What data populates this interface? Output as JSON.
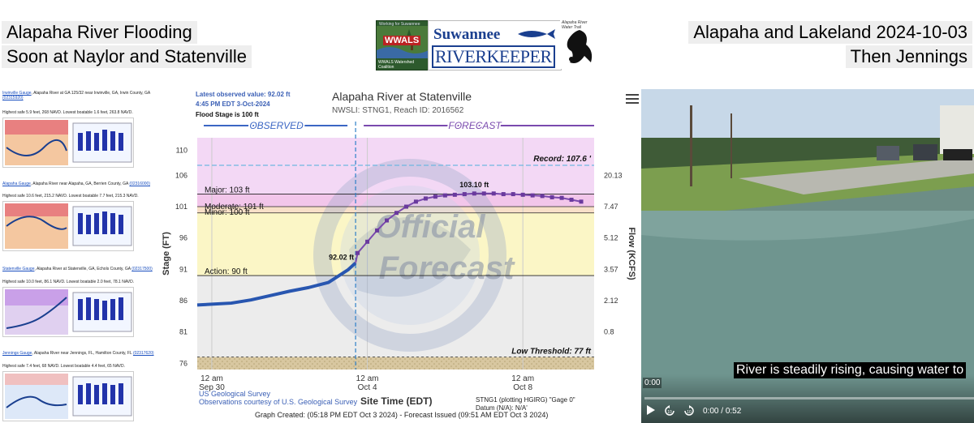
{
  "header": {
    "left_line1": "Alapaha River Flooding",
    "left_line2": "Soon at Naylor and Statenville",
    "right_line1": "Alapaha and Lakeland 2024-10-03",
    "right_line2": "Then Jennings"
  },
  "logo": {
    "wwals_top": "Working for Suwannee Conservation",
    "wwals_name": "WWALS",
    "wwals_bottom": "WWALS Watershed Coalition",
    "riverkeeper_name": "Suwannee",
    "riverkeeper_word": "RIVERKEEPER",
    "alapaha_text": "Alapaha River Water Trail"
  },
  "gauges": [
    {
      "link": "Irwinville Gauge",
      "title": ", Alapaha River at GA 125/32 near Irwinville, GA, Irwin County, GA",
      "code": "(02315920)",
      "stats": "Highest safe 5.9 feet, 268 NAVD. Lowest boatable 1.6 feet, 263.8 NAVD."
    },
    {
      "link": "Alapaha Gauge",
      "title": ", Alapaha River near Alapaha, GA, Berrien County, GA",
      "code": "(02316000)",
      "stats": "Highest safe 10.6 feet, 215.2 NAVD. Lowest boatable 7.7 feet, 215.3 NAVD."
    },
    {
      "link": "Statenville Gauge",
      "title": ", Alapaha River at Statenville, GA, Echols County, GA",
      "code": "(02317500)",
      "stats": "Highest safe 10.0 feet, 86.1 NAVD. Lowest boatable 2.0 feet, 78.1 NAVD."
    },
    {
      "link": "Jennings Gauge",
      "title": ", Alapaha River near Jennings, FL, Hamilton County, FL",
      "code": "(02317620)",
      "stats": "Highest safe 7.4 feet, 68 NAVD. Lowest boatable 4.4 feet, 65 NAVD."
    }
  ],
  "hydrograph": {
    "latest_line1": "Latest observed value: 92.02 ft",
    "latest_line2": "4:45 PM EDT 3-Oct-2024",
    "flood_stage": "Flood Stage is 100 ft",
    "title": "Alapaha River at Statenville",
    "subtitle": "NWSLI: STNG1, Reach ID: 2016562",
    "observed_label": "OBSERVED",
    "forecast_label": "FORECAST",
    "record_label": "Record: 107.6 '",
    "major_label": "Major: 103 ft",
    "moderate_label": "Moderate: 101 ft",
    "minor_label": "Minor: 100 ft",
    "action_label": "Action: 90 ft",
    "low_threshold_label": "Low Threshold: 77 ft",
    "peak_label": "103.10 ft",
    "current_label": "92.02 ft",
    "watermark_line1": "Official",
    "watermark_line2": "Forecast",
    "seal_text": "NATIONAL OCEANIC AND ATMOSPHERIC ADMINISTRATION U.S. DEPARTMENT OF COMMERCE",
    "ylabel": "Stage (FT)",
    "y2label": "Flow (KCFS)",
    "xlabel": "Site Time (EDT)",
    "credit1": "US Geological Survey",
    "credit2": "Observations courtesy of U.S. Geological Survey",
    "datum1": "STNG1 (plotting HGIRG) \"Gage 0\"",
    "datum2": "Datum (N/A): N/A'",
    "footer": "Graph Created: (05:18 PM EDT Oct 3 2024) - Forecast Issued (09:51 AM EDT Oct 3 2024)"
  },
  "chart_data": {
    "type": "line",
    "title": "Alapaha River at Statenville",
    "xlabel": "Site Time (EDT)",
    "ylabel": "Stage (FT)",
    "y2label": "Flow (KCFS)",
    "ylim": [
      75,
      112
    ],
    "xlim_days": [
      "2024-09-29 15:00",
      "2024-10-09 20:00"
    ],
    "y_ticks": [
      110,
      106,
      101,
      96,
      91,
      86,
      81,
      76
    ],
    "y2_ticks": [
      "20.13",
      "7.47",
      "5.12",
      "3.57",
      "2.12",
      "0.8"
    ],
    "y2_tick_stage": [
      106,
      101,
      96,
      91,
      86,
      81
    ],
    "x_ticks": [
      {
        "x": "2024-09-30 00:00",
        "line1": "12 am",
        "line2": "Sep 30"
      },
      {
        "x": "2024-10-04 00:00",
        "line1": "12 am",
        "line2": "Oct 4"
      },
      {
        "x": "2024-10-08 00:00",
        "line1": "12 am",
        "line2": "Oct 8"
      }
    ],
    "current_time": "2024-10-03 16:45",
    "thresholds": {
      "record": 107.6,
      "major": 103,
      "moderate": 101,
      "minor": 100,
      "action": 90,
      "low": 77
    },
    "series": [
      {
        "name": "OBSERVED",
        "x": [
          "2024-09-29 15:00",
          "2024-09-30 12:00",
          "2024-10-01 00:00",
          "2024-10-01 12:00",
          "2024-10-02 00:00",
          "2024-10-02 12:00",
          "2024-10-03 00:00",
          "2024-10-03 12:00",
          "2024-10-03 16:45"
        ],
        "y": [
          85.3,
          85.6,
          86.1,
          86.8,
          87.5,
          88.1,
          88.9,
          90.9,
          92.02
        ]
      },
      {
        "name": "FORECAST",
        "x": [
          "2024-10-03 18:00",
          "2024-10-04 00:00",
          "2024-10-04 06:00",
          "2024-10-04 12:00",
          "2024-10-04 18:00",
          "2024-10-05 00:00",
          "2024-10-05 06:00",
          "2024-10-05 12:00",
          "2024-10-05 18:00",
          "2024-10-06 00:00",
          "2024-10-06 06:00",
          "2024-10-06 12:00",
          "2024-10-06 18:00",
          "2024-10-07 00:00",
          "2024-10-07 06:00",
          "2024-10-07 12:00",
          "2024-10-07 18:00",
          "2024-10-08 00:00",
          "2024-10-08 06:00",
          "2024-10-08 12:00",
          "2024-10-08 18:00",
          "2024-10-09 00:00",
          "2024-10-09 06:00",
          "2024-10-09 12:00"
        ],
        "y": [
          93.6,
          95.4,
          97.2,
          98.8,
          100.0,
          101.0,
          101.8,
          102.3,
          102.6,
          102.8,
          102.9,
          103.0,
          103.1,
          103.1,
          103.1,
          103.0,
          103.0,
          102.9,
          102.8,
          102.7,
          102.5,
          102.4,
          102.1,
          101.8
        ]
      }
    ]
  },
  "video": {
    "caption": "River is steadily rising, causing water to",
    "time_marker": "0:00",
    "current_time": "0:00",
    "separator": "/",
    "duration": "0:52",
    "progress": 0,
    "icons": [
      "play-icon",
      "rewind-10-icon",
      "forward-10-icon"
    ]
  }
}
